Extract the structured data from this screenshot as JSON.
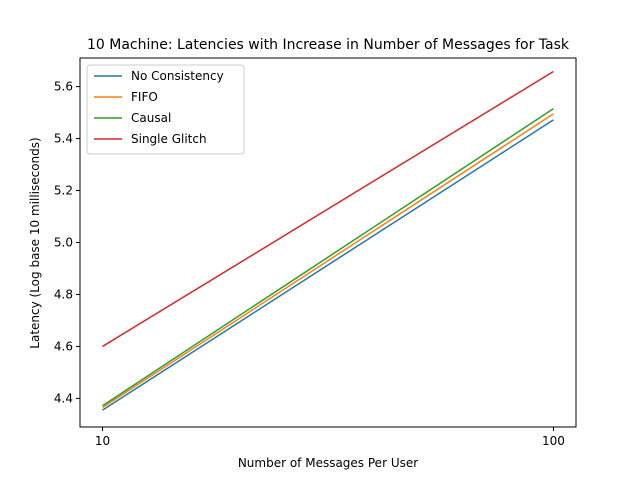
{
  "chart_data": {
    "type": "line",
    "title": "10 Machine: Latencies with Increase in Number of Messages for Task",
    "xlabel": "Number of Messages Per User",
    "ylabel": "Latency (Log base 10 milliseconds)",
    "x": [
      10,
      100
    ],
    "x_scale": "log",
    "x_ticks": [
      "10",
      "100"
    ],
    "ylim": [
      4.29,
      5.71
    ],
    "y_ticks": [
      "4.4",
      "4.6",
      "4.8",
      "5.0",
      "5.2",
      "5.4",
      "5.6"
    ],
    "grid": false,
    "legend_position": "top-left",
    "series": [
      {
        "name": "No Consistency",
        "color": "#1f77b4",
        "values": [
          4.355,
          5.472
        ]
      },
      {
        "name": "FIFO",
        "color": "#ff7f0e",
        "values": [
          4.365,
          5.495
        ]
      },
      {
        "name": "Causal",
        "color": "#2ca02c",
        "values": [
          4.372,
          5.515
        ]
      },
      {
        "name": "Single Glitch",
        "color": "#d62728",
        "values": [
          4.6,
          5.658
        ]
      }
    ]
  }
}
